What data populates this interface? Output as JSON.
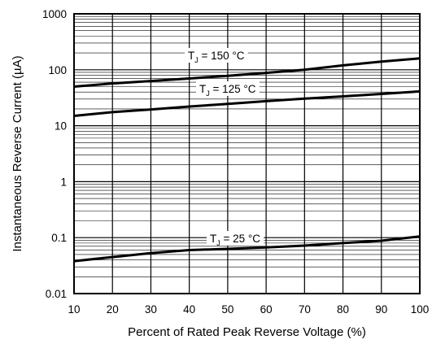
{
  "chart_data": {
    "type": "line",
    "title": "",
    "xlabel": "Percent of Rated Peak Reverse Voltage (%)",
    "ylabel": "Instantaneous Reverse Current (µA)",
    "xlim": [
      10,
      100
    ],
    "ylim": [
      0.01,
      1000
    ],
    "yscale": "log",
    "grid": true,
    "x_ticks": [
      "10",
      "20",
      "30",
      "40",
      "50",
      "60",
      "70",
      "80",
      "90",
      "100"
    ],
    "y_ticks": [
      "0.01",
      "0.1",
      "1",
      "10",
      "100",
      "1000"
    ],
    "x": [
      10,
      20,
      30,
      40,
      50,
      60,
      70,
      80,
      90,
      100
    ],
    "series": [
      {
        "label_main": "T",
        "label_sub": "J",
        "label_rest": " = 150 °C",
        "values": [
          50,
          57,
          63,
          70,
          78,
          88,
          100,
          120,
          140,
          160
        ]
      },
      {
        "label_main": "T",
        "label_sub": "J",
        "label_rest": " = 125 °C",
        "values": [
          15,
          17.5,
          19.5,
          22,
          24.5,
          27.5,
          30.5,
          33.5,
          37,
          41
        ]
      },
      {
        "label_main": "T",
        "label_sub": "J",
        "label_rest": " = 25 °C",
        "values": [
          0.038,
          0.045,
          0.053,
          0.06,
          0.063,
          0.067,
          0.072,
          0.08,
          0.088,
          0.105
        ]
      }
    ]
  }
}
